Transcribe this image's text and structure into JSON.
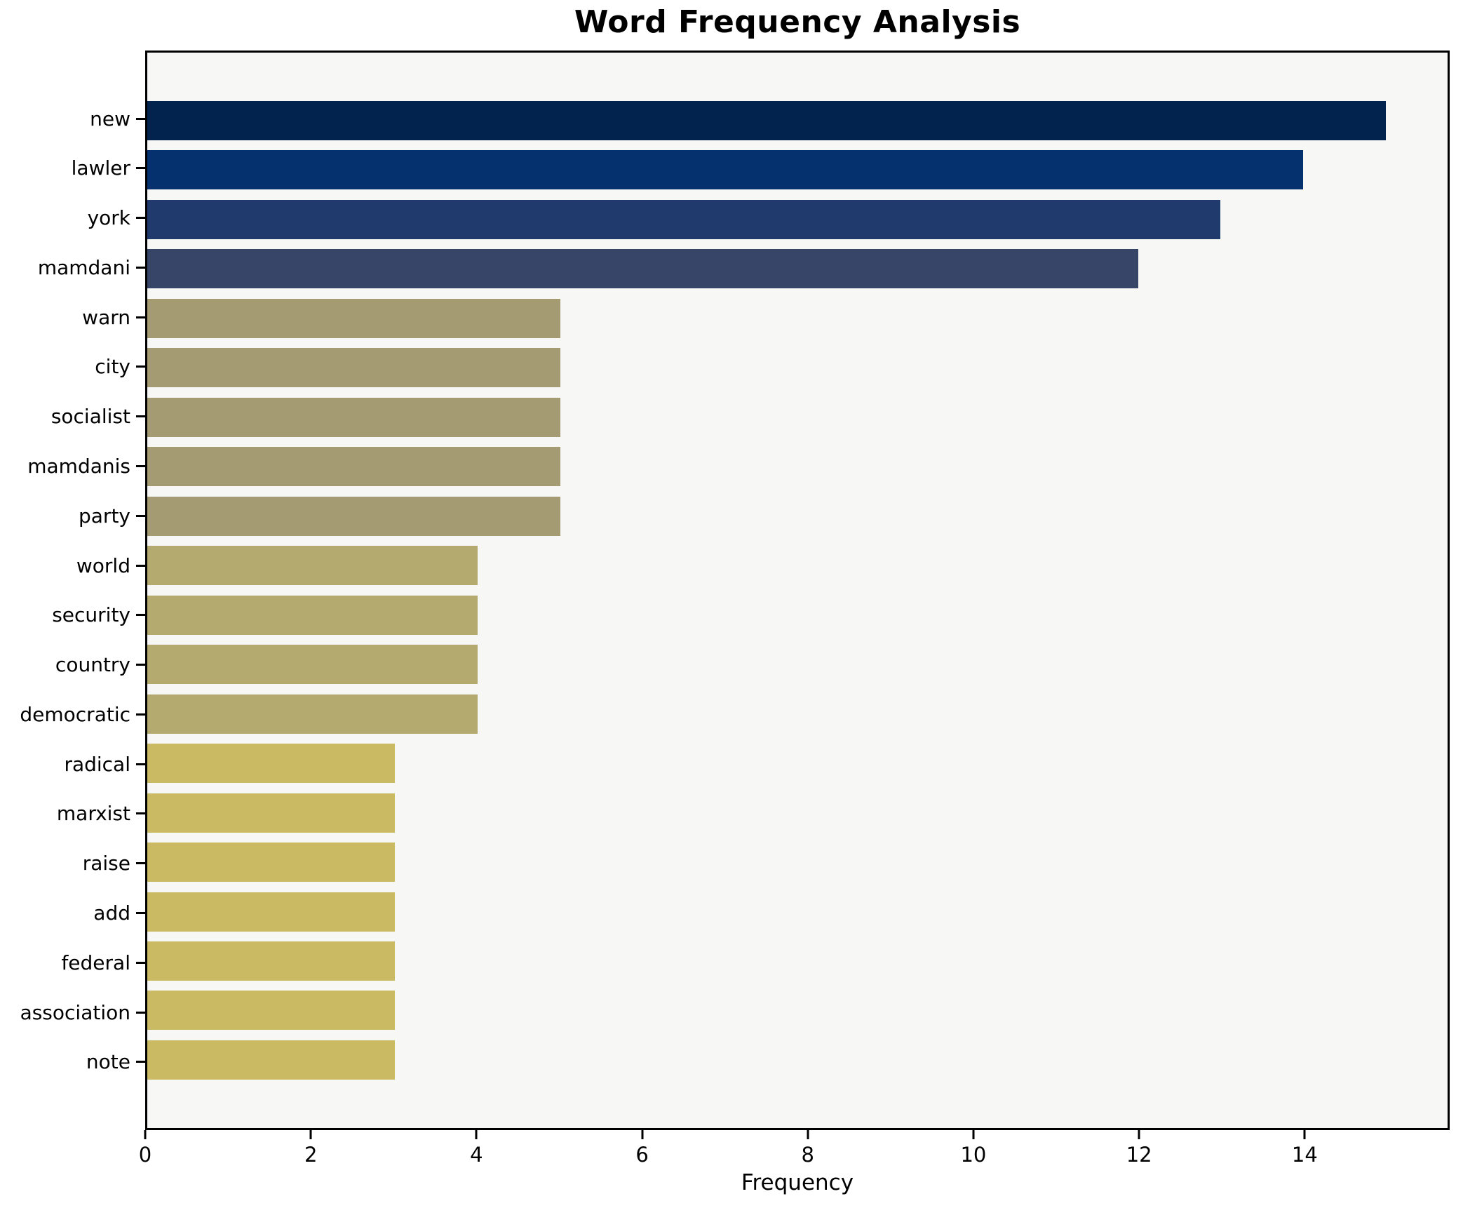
{
  "chart_data": {
    "type": "bar",
    "orientation": "horizontal",
    "title": "Word Frequency Analysis",
    "xlabel": "Frequency",
    "ylabel": "",
    "categories": [
      "new",
      "lawler",
      "york",
      "mamdani",
      "warn",
      "city",
      "socialist",
      "mamdanis",
      "party",
      "world",
      "security",
      "country",
      "democratic",
      "radical",
      "marxist",
      "raise",
      "add",
      "federal",
      "association",
      "note"
    ],
    "values": [
      15,
      14,
      13,
      12,
      5,
      5,
      5,
      5,
      5,
      4,
      4,
      4,
      4,
      3,
      3,
      3,
      3,
      3,
      3,
      3
    ],
    "bar_colors": [
      "#02234e",
      "#05316e",
      "#213a6e",
      "#374568",
      "#a49b73",
      "#a49b73",
      "#a49b73",
      "#a49b73",
      "#a49b73",
      "#b4a96e",
      "#b4a96e",
      "#b4a96e",
      "#b4a96e",
      "#c9ba63",
      "#c9ba63",
      "#c9ba63",
      "#c9ba63",
      "#c9ba63",
      "#c9ba63",
      "#c9ba63"
    ],
    "xlim": [
      0,
      15.75
    ],
    "x_ticks": [
      0,
      2,
      4,
      6,
      8,
      10,
      12,
      14
    ],
    "grid": false,
    "legend": false,
    "plot_bg": "#f7f7f5",
    "figure_bg": "#ffffff",
    "axis_color": "#000000"
  }
}
